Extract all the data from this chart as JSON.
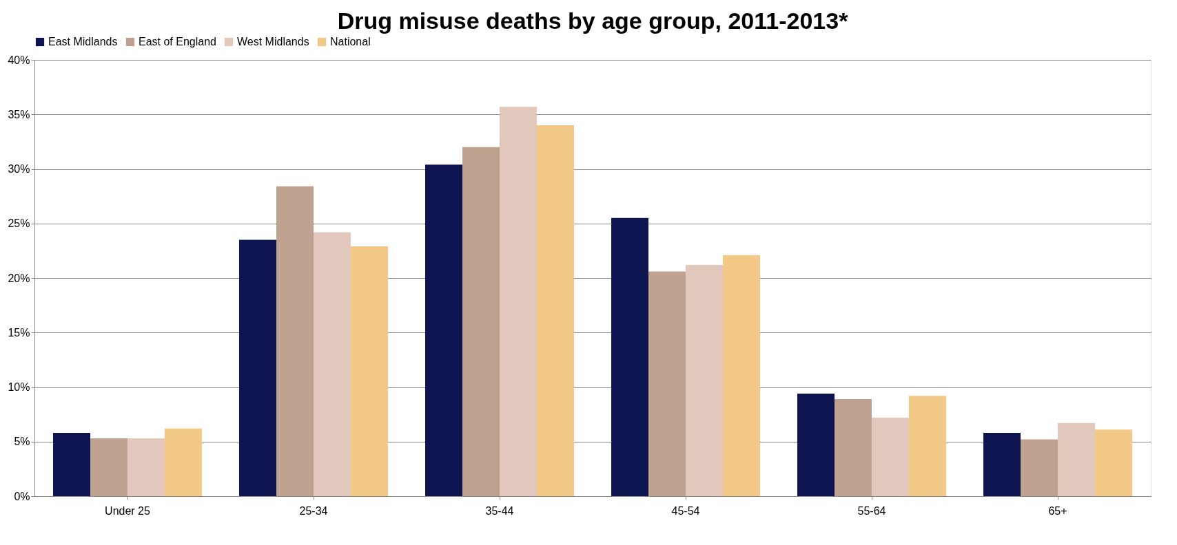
{
  "chart_data": {
    "type": "bar",
    "title": "Drug misuse deaths by age group, 2011-2013*",
    "categories": [
      "Under 25",
      "25-34",
      "35-44",
      "45-54",
      "55-64",
      "65+"
    ],
    "series": [
      {
        "name": "East Midlands",
        "color": "#0e1450",
        "values": [
          5.8,
          23.5,
          30.4,
          25.5,
          9.4,
          5.8
        ]
      },
      {
        "name": "East of England",
        "color": "#bfa190",
        "values": [
          5.3,
          28.4,
          32.0,
          20.6,
          8.9,
          5.2
        ]
      },
      {
        "name": "West Midlands",
        "color": "#e2c8bc",
        "values": [
          5.3,
          24.2,
          35.7,
          21.2,
          7.2,
          6.7
        ]
      },
      {
        "name": "National",
        "color": "#f2c886",
        "values": [
          6.2,
          22.9,
          34.0,
          22.1,
          9.2,
          6.1
        ]
      }
    ],
    "ylim": [
      0,
      40
    ],
    "yticks": [
      {
        "value": 0,
        "label": "0%"
      },
      {
        "value": 5,
        "label": "5%"
      },
      {
        "value": 10,
        "label": "10%"
      },
      {
        "value": 15,
        "label": "15%"
      },
      {
        "value": 20,
        "label": "20%"
      },
      {
        "value": 25,
        "label": "25%"
      },
      {
        "value": 30,
        "label": "30%"
      },
      {
        "value": 35,
        "label": "35%"
      },
      {
        "value": 40,
        "label": "40%"
      }
    ],
    "grid": "y",
    "legend": "top"
  }
}
